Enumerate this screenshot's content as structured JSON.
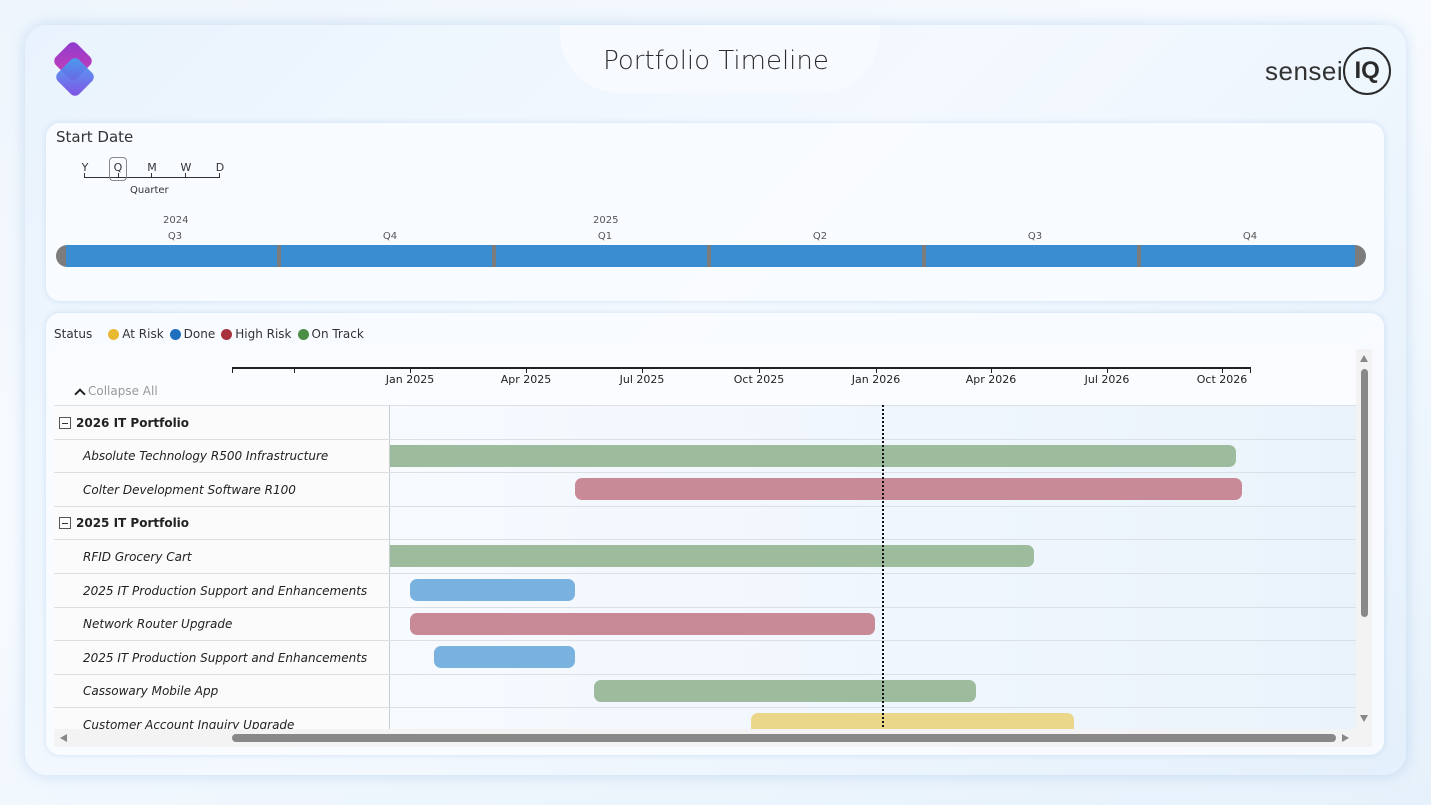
{
  "header": {
    "title": "Portfolio Timeline",
    "brand_text": "sensei",
    "brand_iq": "IQ"
  },
  "slicer": {
    "title": "Start Date",
    "granularity": {
      "letters": [
        "Y",
        "Q",
        "M",
        "W",
        "D"
      ],
      "selected": "Q",
      "selected_label": "Quarter"
    },
    "years": [
      "2024",
      "2025"
    ],
    "quarters": [
      "Q3",
      "Q4",
      "Q1",
      "Q2",
      "Q3",
      "Q4"
    ],
    "colors": {
      "track": "#3a8dd0",
      "ends": "#7c7c7c"
    }
  },
  "gantt": {
    "legend": {
      "title": "Status",
      "items": [
        {
          "label": "At Risk",
          "color": "#e8b931"
        },
        {
          "label": "Done",
          "color": "#1f6fbf"
        },
        {
          "label": "High Risk",
          "color": "#a8323e"
        },
        {
          "label": "On Track",
          "color": "#4a8f43"
        }
      ]
    },
    "collapse_label": "Collapse All",
    "axis_labels": [
      "Jan 2025",
      "Apr 2025",
      "Jul 2025",
      "Oct 2025",
      "Jan 2026",
      "Apr 2026",
      "Jul 2026",
      "Oct 2026"
    ],
    "today": "2026-01-01",
    "status_colors": {
      "At Risk": "#ebd78a",
      "Done": "#7ab2df",
      "High Risk": "#c78a96",
      "On Track": "#9dbb9d"
    },
    "rows": [
      {
        "type": "group",
        "label": "2026 IT Portfolio"
      },
      {
        "type": "task",
        "label": "Absolute Technology R500 Infrastructure",
        "status": "On Track",
        "start": "2024-12-15",
        "end": "2026-10-10"
      },
      {
        "type": "task",
        "label": "Colter Development Software R100",
        "status": "High Risk",
        "start": "2025-05-10",
        "end": "2026-10-15"
      },
      {
        "type": "group",
        "label": "2025 IT Portfolio"
      },
      {
        "type": "task",
        "label": "RFID Grocery Cart",
        "status": "On Track",
        "start": "2024-12-15",
        "end": "2026-05-05"
      },
      {
        "type": "task",
        "label": "2025 IT Production Support and Enhancements",
        "status": "Done",
        "start": "2025-01-01",
        "end": "2025-05-10"
      },
      {
        "type": "task",
        "label": "Network Router Upgrade",
        "status": "High Risk",
        "start": "2025-01-01",
        "end": "2025-12-31"
      },
      {
        "type": "task",
        "label": "2025 IT Production Support and Enhancements",
        "status": "Done",
        "start": "2025-01-20",
        "end": "2025-05-10"
      },
      {
        "type": "task",
        "label": "Cassowary Mobile App",
        "status": "On Track",
        "start": "2025-05-25",
        "end": "2026-03-20"
      },
      {
        "type": "task",
        "label": "Customer Account Inquiry Upgrade",
        "status": "At Risk",
        "start": "2025-09-25",
        "end": "2026-06-05"
      }
    ]
  }
}
